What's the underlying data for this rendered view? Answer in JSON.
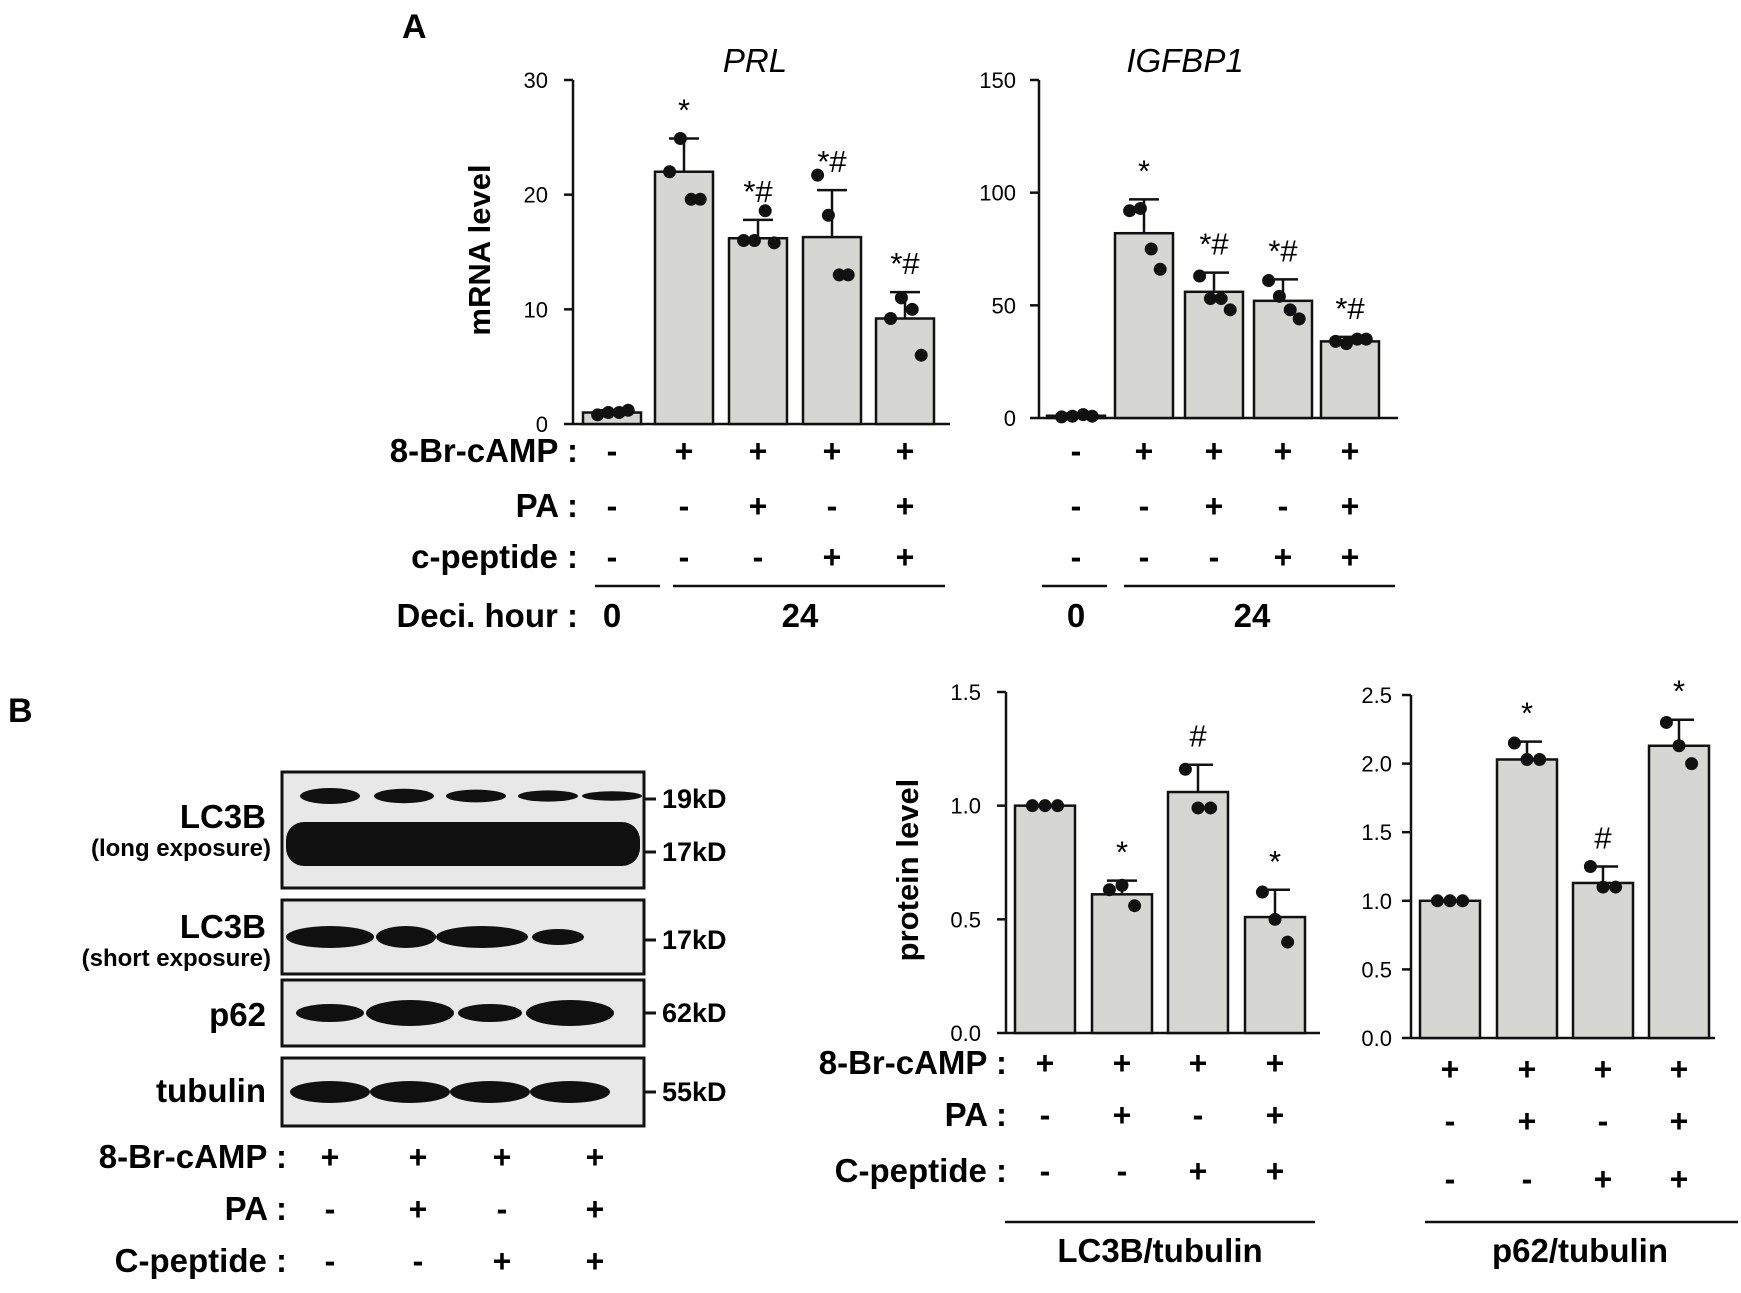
{
  "panels": {
    "a": "A",
    "b": "B"
  },
  "sign_plus": "+",
  "sign_minus": "-",
  "chart_data": [
    {
      "id": "prl",
      "type": "bar",
      "title": "PRL",
      "ylabel": "mRNA level",
      "ylim": [
        0,
        30
      ],
      "yticks": [
        "0",
        "10",
        "20",
        "30"
      ],
      "categories": [
        "1",
        "2",
        "3",
        "4",
        "5"
      ],
      "values": [
        1.0,
        22.0,
        16.2,
        16.3,
        9.2
      ],
      "error": [
        0.2,
        2.9,
        1.6,
        4.1,
        2.3
      ],
      "points": [
        [
          0.8,
          1.0,
          1.0,
          1.2
        ],
        [
          22.0,
          24.9,
          19.6,
          19.6
        ],
        [
          16.0,
          16.0,
          18.6,
          15.8
        ],
        [
          21.7,
          18.2,
          13.0,
          13.0
        ],
        [
          9.2,
          11.0,
          10.0,
          6.0
        ]
      ],
      "significance": [
        "",
        "*",
        "*#",
        "*#",
        "*#"
      ],
      "conditions": [
        {
          "label": "8-Br-cAMP :",
          "signs": [
            "-",
            "+",
            "+",
            "+",
            "+"
          ]
        },
        {
          "label": "PA :",
          "signs": [
            "-",
            "-",
            "+",
            "-",
            "+"
          ]
        },
        {
          "label": "c-peptide :",
          "signs": [
            "-",
            "-",
            "-",
            "+",
            "+"
          ]
        }
      ],
      "hour_label": "Deci. hour :",
      "hours": [
        "0",
        "24"
      ]
    },
    {
      "id": "igfbp1",
      "type": "bar",
      "title": "IGFBP1",
      "ylim": [
        0,
        150
      ],
      "yticks": [
        "0",
        "50",
        "100",
        "150"
      ],
      "categories": [
        "1",
        "2",
        "3",
        "4",
        "5"
      ],
      "values": [
        1.0,
        82.0,
        56.0,
        52.0,
        34.0
      ],
      "error": [
        1.0,
        15.0,
        8.5,
        9.5,
        2.0
      ],
      "points": [
        [
          0.5,
          0.8,
          1.5,
          0.8
        ],
        [
          92.0,
          93.0,
          75.0,
          66.0
        ],
        [
          63.0,
          53.0,
          53.0,
          48.0
        ],
        [
          61.0,
          54.0,
          48.0,
          44.0
        ],
        [
          34.0,
          33.0,
          35.0,
          35.0
        ]
      ],
      "significance": [
        "",
        "*",
        "*#",
        "*#",
        "*#"
      ],
      "conditions": [
        {
          "signs": [
            "-",
            "+",
            "+",
            "+",
            "+"
          ]
        },
        {
          "signs": [
            "-",
            "-",
            "+",
            "-",
            "+"
          ]
        },
        {
          "signs": [
            "-",
            "-",
            "-",
            "+",
            "+"
          ]
        }
      ],
      "hours": [
        "0",
        "24"
      ]
    },
    {
      "id": "lc3b",
      "type": "bar",
      "ylabel": "protein level",
      "ylim": [
        0,
        1.5
      ],
      "yticks": [
        "0.0",
        "0.5",
        "1.0",
        "1.5"
      ],
      "categories": [
        "1",
        "2",
        "3",
        "4"
      ],
      "values": [
        1.0,
        0.61,
        1.06,
        0.51
      ],
      "error": [
        0.0,
        0.06,
        0.12,
        0.12
      ],
      "points": [
        [
          1.0,
          1.0,
          1.0
        ],
        [
          0.63,
          0.65,
          0.56
        ],
        [
          1.16,
          0.99,
          0.99
        ],
        [
          0.62,
          0.5,
          0.4
        ]
      ],
      "significance": [
        "",
        "*",
        "#",
        "*"
      ],
      "conditions": [
        {
          "label": "8-Br-cAMP :",
          "signs": [
            "+",
            "+",
            "+",
            "+"
          ]
        },
        {
          "label": "PA :",
          "signs": [
            "-",
            "+",
            "-",
            "+"
          ]
        },
        {
          "label": "C-peptide :",
          "signs": [
            "-",
            "-",
            "+",
            "+"
          ]
        }
      ],
      "caption": "LC3B/tubulin"
    },
    {
      "id": "p62",
      "type": "bar",
      "ylim": [
        0,
        2.5
      ],
      "yticks": [
        "0.0",
        "0.5",
        "1.0",
        "1.5",
        "2.0",
        "2.5"
      ],
      "categories": [
        "1",
        "2",
        "3",
        "4"
      ],
      "values": [
        1.0,
        2.03,
        1.13,
        2.13
      ],
      "error": [
        0.0,
        0.13,
        0.12,
        0.19
      ],
      "points": [
        [
          1.0,
          1.0,
          1.0
        ],
        [
          2.15,
          2.03,
          2.03
        ],
        [
          1.25,
          1.1,
          1.1
        ],
        [
          2.3,
          2.13,
          2.0
        ]
      ],
      "significance": [
        "",
        "*",
        "#",
        "*"
      ],
      "conditions": [
        {
          "signs": [
            "+",
            "+",
            "+",
            "+"
          ]
        },
        {
          "signs": [
            "-",
            "+",
            "-",
            "+"
          ]
        },
        {
          "signs": [
            "-",
            "-",
            "+",
            "+"
          ]
        }
      ],
      "caption": "p62/tubulin"
    }
  ],
  "blot": {
    "rows": [
      {
        "label": "LC3B",
        "sublabel": "(long exposure)",
        "markers": [
          "19kD",
          "17kD"
        ]
      },
      {
        "label": "LC3B",
        "sublabel": "(short exposure)",
        "markers": [
          "17kD"
        ]
      },
      {
        "label": "p62",
        "markers": [
          "62kD"
        ]
      },
      {
        "label": "tubulin",
        "markers": [
          "55kD"
        ]
      }
    ],
    "conditions": [
      {
        "label": "8-Br-cAMP :",
        "signs": [
          "+",
          "+",
          "+",
          "+"
        ]
      },
      {
        "label": "PA :",
        "signs": [
          "-",
          "+",
          "-",
          "+"
        ]
      },
      {
        "label": "C-peptide :",
        "signs": [
          "-",
          "-",
          "+",
          "+"
        ]
      }
    ]
  },
  "colors": {
    "bar": "#d6d6d2",
    "ink": "#111111",
    "blot_bg": "#e8e8e8",
    "band": "#101010"
  }
}
